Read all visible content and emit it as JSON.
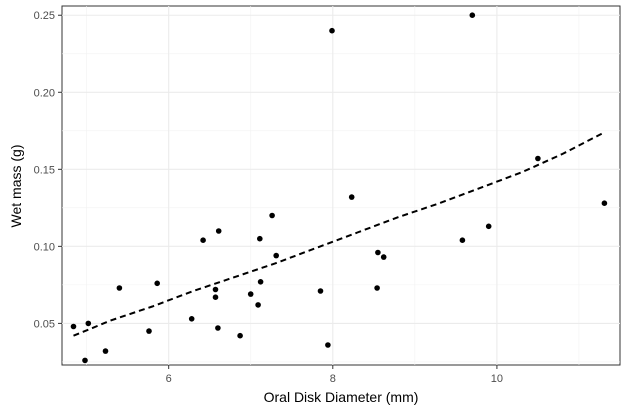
{
  "chart_data": {
    "type": "scatter",
    "title": "",
    "xlabel": "Oral Disk Diameter (mm)",
    "ylabel": "Wet mass (g)",
    "xlim": [
      4.7,
      11.5
    ],
    "ylim": [
      0.023,
      0.256
    ],
    "x_ticks": [
      6,
      8,
      10
    ],
    "y_ticks": [
      0.05,
      0.1,
      0.15,
      0.2,
      0.25
    ],
    "x_tick_labels": [
      "6",
      "8",
      "10"
    ],
    "y_tick_labels": [
      "0.05",
      "0.10",
      "0.15",
      "0.20",
      "0.25"
    ],
    "grid": true,
    "points": [
      {
        "x": 4.84,
        "y": 0.048
      },
      {
        "x": 4.98,
        "y": 0.026
      },
      {
        "x": 5.02,
        "y": 0.05
      },
      {
        "x": 5.23,
        "y": 0.032
      },
      {
        "x": 5.4,
        "y": 0.073
      },
      {
        "x": 5.76,
        "y": 0.045
      },
      {
        "x": 5.86,
        "y": 0.076
      },
      {
        "x": 6.28,
        "y": 0.053
      },
      {
        "x": 6.42,
        "y": 0.104
      },
      {
        "x": 6.57,
        "y": 0.072
      },
      {
        "x": 6.57,
        "y": 0.067
      },
      {
        "x": 6.6,
        "y": 0.047
      },
      {
        "x": 6.61,
        "y": 0.11
      },
      {
        "x": 6.87,
        "y": 0.042
      },
      {
        "x": 7.0,
        "y": 0.069
      },
      {
        "x": 7.09,
        "y": 0.062
      },
      {
        "x": 7.11,
        "y": 0.105
      },
      {
        "x": 7.12,
        "y": 0.077
      },
      {
        "x": 7.26,
        "y": 0.12
      },
      {
        "x": 7.31,
        "y": 0.094
      },
      {
        "x": 7.85,
        "y": 0.071
      },
      {
        "x": 7.94,
        "y": 0.036
      },
      {
        "x": 7.99,
        "y": 0.24
      },
      {
        "x": 8.23,
        "y": 0.132
      },
      {
        "x": 8.54,
        "y": 0.073
      },
      {
        "x": 8.55,
        "y": 0.096
      },
      {
        "x": 8.62,
        "y": 0.093
      },
      {
        "x": 9.58,
        "y": 0.104
      },
      {
        "x": 9.7,
        "y": 0.25
      },
      {
        "x": 9.9,
        "y": 0.113
      },
      {
        "x": 10.5,
        "y": 0.157
      },
      {
        "x": 11.31,
        "y": 0.128
      }
    ],
    "trend_line": {
      "style": "dashed",
      "x": [
        4.84,
        5.3,
        5.8,
        6.3,
        6.8,
        7.3,
        7.8,
        8.3,
        8.8,
        9.3,
        9.8,
        10.3,
        10.8,
        11.31
      ],
      "y": [
        0.042,
        0.052,
        0.061,
        0.071,
        0.08,
        0.089,
        0.099,
        0.109,
        0.119,
        0.128,
        0.138,
        0.148,
        0.16,
        0.174
      ]
    }
  }
}
